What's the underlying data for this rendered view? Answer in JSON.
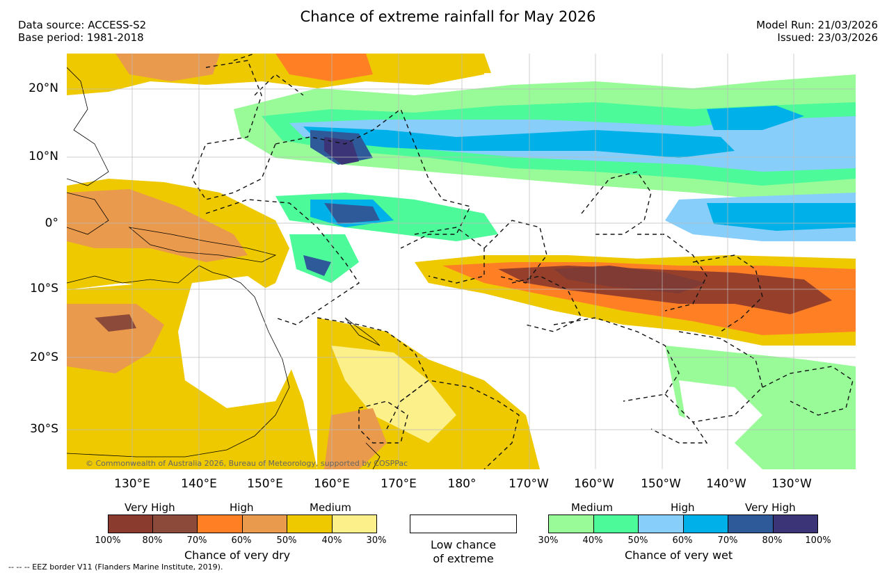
{
  "title": "Chance of extreme rainfall for May 2026",
  "header_left": {
    "data_source": "Data source: ACCESS-S2",
    "base_period": "Base period: 1981-2018"
  },
  "header_right": {
    "model_run": "Model Run: 21/03/2026",
    "issued": "Issued: 23/03/2026"
  },
  "map": {
    "lat_labels": [
      "20°N",
      "10°N",
      "0°",
      "10°S",
      "20°S",
      "30°S"
    ],
    "lon_labels": [
      "130°E",
      "140°E",
      "150°E",
      "160°E",
      "170°E",
      "180°",
      "170°W",
      "160°W",
      "150°W",
      "140°W",
      "130°W"
    ],
    "copyright": "© Commonwealth of Australia 2026, Bureau of Meteorology, supported by COSPPac"
  },
  "legend": {
    "dry": {
      "group_labels": [
        "Very High",
        "High",
        "Medium"
      ],
      "colors": [
        "#8b3a2e",
        "#8c4a3a",
        "#ff7f24",
        "#ea9a4c",
        "#eec900",
        "#fbf08a"
      ],
      "ticks": [
        "100%",
        "80%",
        "70%",
        "60%",
        "50%",
        "40%",
        "30%"
      ],
      "title": "Chance of very dry"
    },
    "neutral": {
      "line1": "Low chance",
      "line2": "of extreme"
    },
    "wet": {
      "group_labels": [
        "Medium",
        "High",
        "Very High"
      ],
      "colors": [
        "#98fb98",
        "#4dfa9a",
        "#87cefa",
        "#00b0e8",
        "#2f5a9a",
        "#3b3477"
      ],
      "ticks": [
        "30%",
        "40%",
        "50%",
        "60%",
        "70%",
        "80%",
        "100%"
      ],
      "title": "Chance of very wet"
    }
  },
  "footnote": "--  --  -- EEZ border V11 (Flanders Marine Institute, 2019).",
  "colors": {
    "very_dry_dark": "#7f3b34",
    "dry_orange": "#ff7f24",
    "dry_light_orange": "#ea9a4c",
    "dry_yellow": "#eec900",
    "dry_pale": "#fbf08a",
    "wet_light_green": "#98fb98",
    "wet_green": "#4dfa9a",
    "wet_light_blue": "#87cefa",
    "wet_blue": "#00b0e8",
    "wet_dark_blue": "#2f5a9a",
    "wet_navy": "#3b3477"
  }
}
